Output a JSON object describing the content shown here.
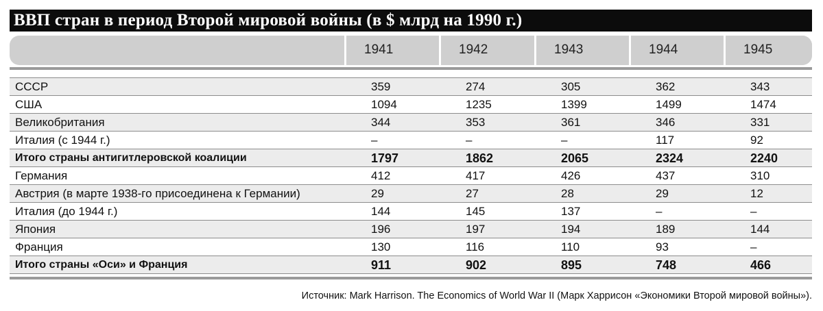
{
  "title": "ВВП стран в период Второй мировой войны (в $ млрд на 1990 г.)",
  "years": [
    "1941",
    "1942",
    "1943",
    "1944",
    "1945"
  ],
  "rows": [
    {
      "name": "СССР",
      "values": [
        "359",
        "274",
        "305",
        "362",
        "343"
      ],
      "bold": false
    },
    {
      "name": "США",
      "values": [
        "1094",
        "1235",
        "1399",
        "1499",
        "1474"
      ],
      "bold": false
    },
    {
      "name": "Великобритания",
      "values": [
        "344",
        "353",
        "361",
        "346",
        "331"
      ],
      "bold": false
    },
    {
      "name": "Италия (с 1944 г.)",
      "values": [
        "–",
        "–",
        "–",
        "117",
        "92"
      ],
      "bold": false
    },
    {
      "name": "Итого страны антигитлеровской коалиции",
      "values": [
        "1797",
        "1862",
        "2065",
        "2324",
        "2240"
      ],
      "bold": true
    },
    {
      "name": "Германия",
      "values": [
        "412",
        "417",
        "426",
        "437",
        "310"
      ],
      "bold": false
    },
    {
      "name": "Австрия (в марте 1938-го присоединена к Германии)",
      "values": [
        "29",
        "27",
        "28",
        "29",
        "12"
      ],
      "bold": false
    },
    {
      "name": "Италия (до 1944 г.)",
      "values": [
        "144",
        "145",
        "137",
        "–",
        "–"
      ],
      "bold": false
    },
    {
      "name": "Япония",
      "values": [
        "196",
        "197",
        "194",
        "189",
        "144"
      ],
      "bold": false
    },
    {
      "name": "Франция",
      "values": [
        "130",
        "116",
        "110",
        "93",
        "–"
      ],
      "bold": false
    },
    {
      "name": "Итого страны «Оси» и Франция",
      "values": [
        "911",
        "902",
        "895",
        "748",
        "466"
      ],
      "bold": true
    }
  ],
  "source": "Источник: Mark Harrison. The Economics of World War II (Марк Харрисон «Экономики Второй мировой войны»).",
  "colors": {
    "title_bg": "#0c0c0c",
    "header_bg": "#cfcfcf",
    "stripe": "#ececec",
    "rule": "#9a9a9a"
  }
}
